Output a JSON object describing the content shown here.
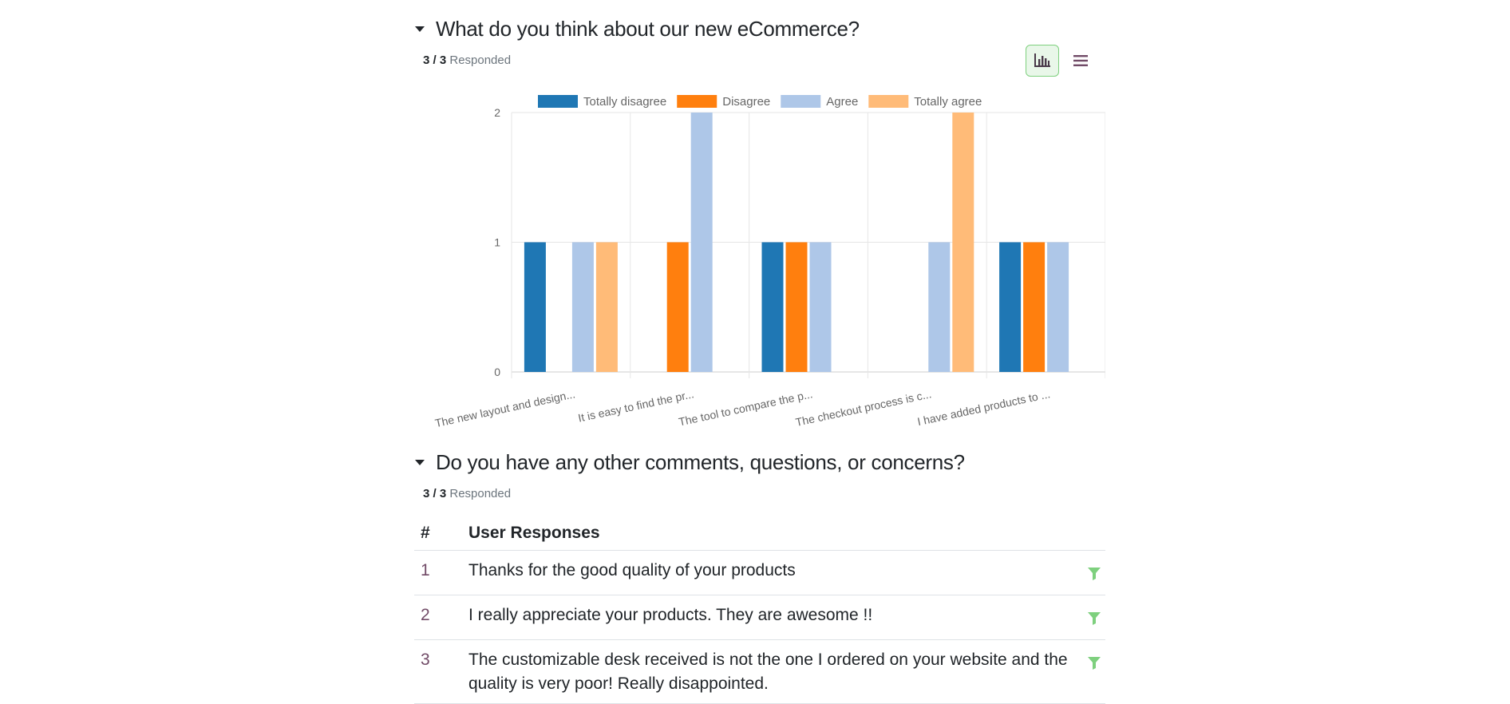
{
  "question1": {
    "title": "What do you think about our new eCommerce?",
    "responded_count": "3 / 3",
    "responded_label": "Responded"
  },
  "view_toggle": {
    "graph_icon": "bar-chart-icon",
    "list_icon": "list-icon",
    "active": "graph"
  },
  "colors": {
    "totally_disagree": "#1f77b4",
    "disagree": "#ff7f0e",
    "agree": "#aec7e8",
    "totally_agree": "#ffbb78",
    "accent_green": "#7ed07e",
    "row_number": "#714b67"
  },
  "chart_data": {
    "type": "bar",
    "legend_position": "top",
    "grid": true,
    "ylim": [
      0,
      2
    ],
    "yticks": [
      "0",
      "1",
      "2"
    ],
    "categories": [
      "The new layout and design...",
      "It is easy to find the pr...",
      "The tool to compare the p...",
      "The checkout process is c...",
      "I have added products to ..."
    ],
    "series": [
      {
        "name": "Totally disagree",
        "color": "#1f77b4",
        "values": [
          1,
          0,
          1,
          0,
          1
        ]
      },
      {
        "name": "Disagree",
        "color": "#ff7f0e",
        "values": [
          0,
          1,
          1,
          0,
          1
        ]
      },
      {
        "name": "Agree",
        "color": "#aec7e8",
        "values": [
          1,
          2,
          1,
          1,
          1
        ]
      },
      {
        "name": "Totally agree",
        "color": "#ffbb78",
        "values": [
          1,
          0,
          0,
          2,
          0
        ]
      }
    ]
  },
  "question2": {
    "title": "Do you have any other comments, questions, or concerns?",
    "responded_count": "3 / 3",
    "responded_label": "Responded",
    "table": {
      "headers": [
        "#",
        "User Responses"
      ],
      "rows": [
        {
          "num": "1",
          "text": "Thanks for the good quality of your products"
        },
        {
          "num": "2",
          "text": "I really appreciate your products. They are awesome !!"
        },
        {
          "num": "3",
          "text": "The customizable desk received is not the one I ordered on your website and the quality is very poor! Really disappointed."
        }
      ]
    }
  }
}
